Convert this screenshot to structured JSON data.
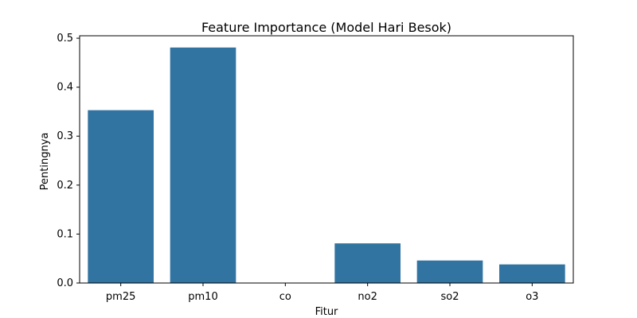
{
  "chart_data": {
    "type": "bar",
    "title": "Feature Importance (Model Hari Besok)",
    "xlabel": "Fitur",
    "ylabel": "Pentingnya",
    "categories": [
      "pm25",
      "pm10",
      "co",
      "no2",
      "so2",
      "o3"
    ],
    "values": [
      0.353,
      0.481,
      0.0,
      0.081,
      0.046,
      0.038
    ],
    "ylim": [
      0,
      0.505
    ],
    "yticks": [
      0.0,
      0.1,
      0.2,
      0.3,
      0.4,
      0.5
    ],
    "ytick_labels": [
      "0.0",
      "0.1",
      "0.2",
      "0.3",
      "0.4",
      "0.5"
    ],
    "grid": false,
    "bar_color": "#3274a1"
  }
}
